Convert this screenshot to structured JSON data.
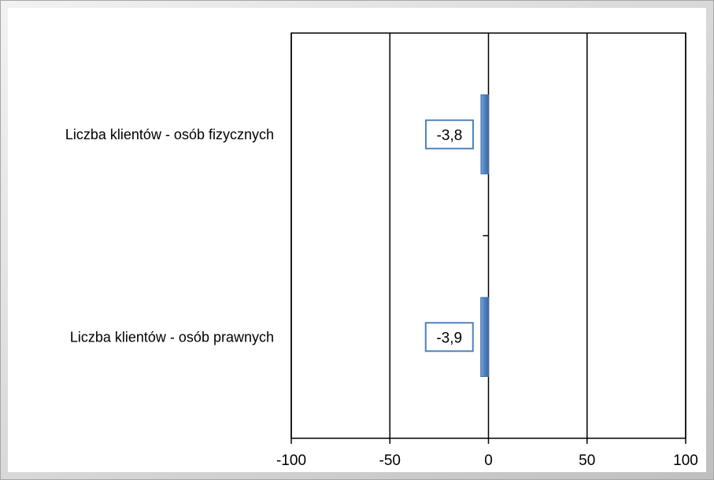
{
  "chart_data": {
    "type": "bar",
    "orientation": "horizontal",
    "categories": [
      "Liczba klientów - osób fizycznych",
      "Liczba klientów - osób prawnych"
    ],
    "values": [
      -3.8,
      -3.9
    ],
    "data_labels": [
      "-3,8",
      "-3,9"
    ],
    "xlim": [
      -100,
      100
    ],
    "x_ticks": [
      -100,
      -50,
      0,
      50,
      100
    ],
    "x_tick_labels": [
      "-100",
      "-50",
      "0",
      "50",
      "100"
    ],
    "grid": "vertical",
    "legend": "none",
    "title": "",
    "xlabel": "",
    "ylabel": ""
  },
  "colors": {
    "bar": "#4f81bd",
    "bar_edge": "#3a6aa6",
    "label_border": "#4f81bd",
    "frame_bg": "#d9d9d9",
    "plot_bg": "#ffffff",
    "grid": "#000000",
    "text": "#000000"
  }
}
